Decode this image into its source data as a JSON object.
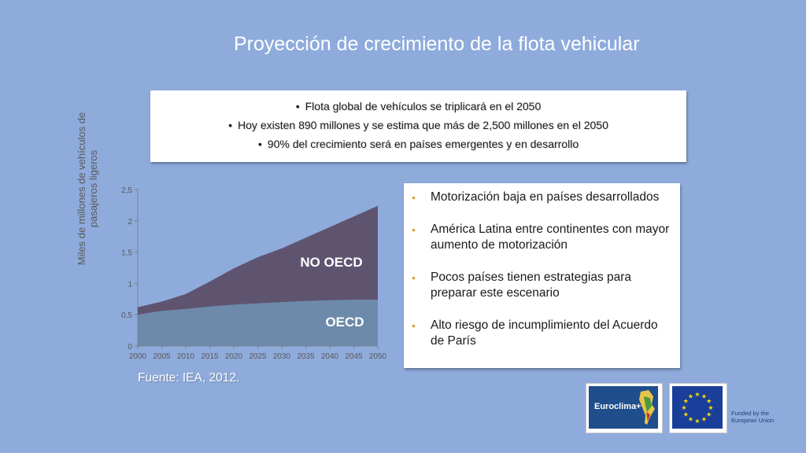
{
  "title": "Proyección de crecimiento de la flota vehicular",
  "top_bullets": [
    "Flota global de vehículos se triplicará en el 2050",
    "Hoy existen 890 millones y se estima que más de  2,500 millones en el 2050",
    "90% del crecimiento será en países emergentes y en desarrollo"
  ],
  "right_bullets": [
    "Motorización baja en países desarrollados",
    "América Latina entre  continentes con mayor aumento de motorización",
    "Pocos países tienen estrategias para preparar este escenario",
    "Alto riesgo de incumplimiento del Acuerdo de París"
  ],
  "source": "Fuente: IEA, 2012.",
  "logos": {
    "euroclima": "Euroclima+",
    "eu_funded": "Funded by the European Union"
  },
  "colors": {
    "background": "#8eabdc",
    "oecd": "#6d8aaa",
    "no_oecd": "#5f5470",
    "bullet_accent": "#e2a33b"
  },
  "chart_data": {
    "type": "area",
    "stacked": true,
    "ylabel": "Miles de millones de vehículos de pasajeros ligeros",
    "ylim": [
      0,
      2.5
    ],
    "yticks": [
      "0",
      "0,5",
      "1",
      "1,5",
      "2",
      "2,5"
    ],
    "x": [
      2000,
      2005,
      2010,
      2015,
      2020,
      2025,
      2030,
      2035,
      2040,
      2045,
      2050
    ],
    "series": [
      {
        "name": "OECD",
        "values": [
          0.5,
          0.56,
          0.59,
          0.63,
          0.66,
          0.68,
          0.7,
          0.72,
          0.73,
          0.74,
          0.74
        ]
      },
      {
        "name": "NO OECD",
        "values": [
          0.12,
          0.15,
          0.24,
          0.4,
          0.58,
          0.74,
          0.86,
          1.01,
          1.17,
          1.33,
          1.5
        ]
      }
    ]
  }
}
